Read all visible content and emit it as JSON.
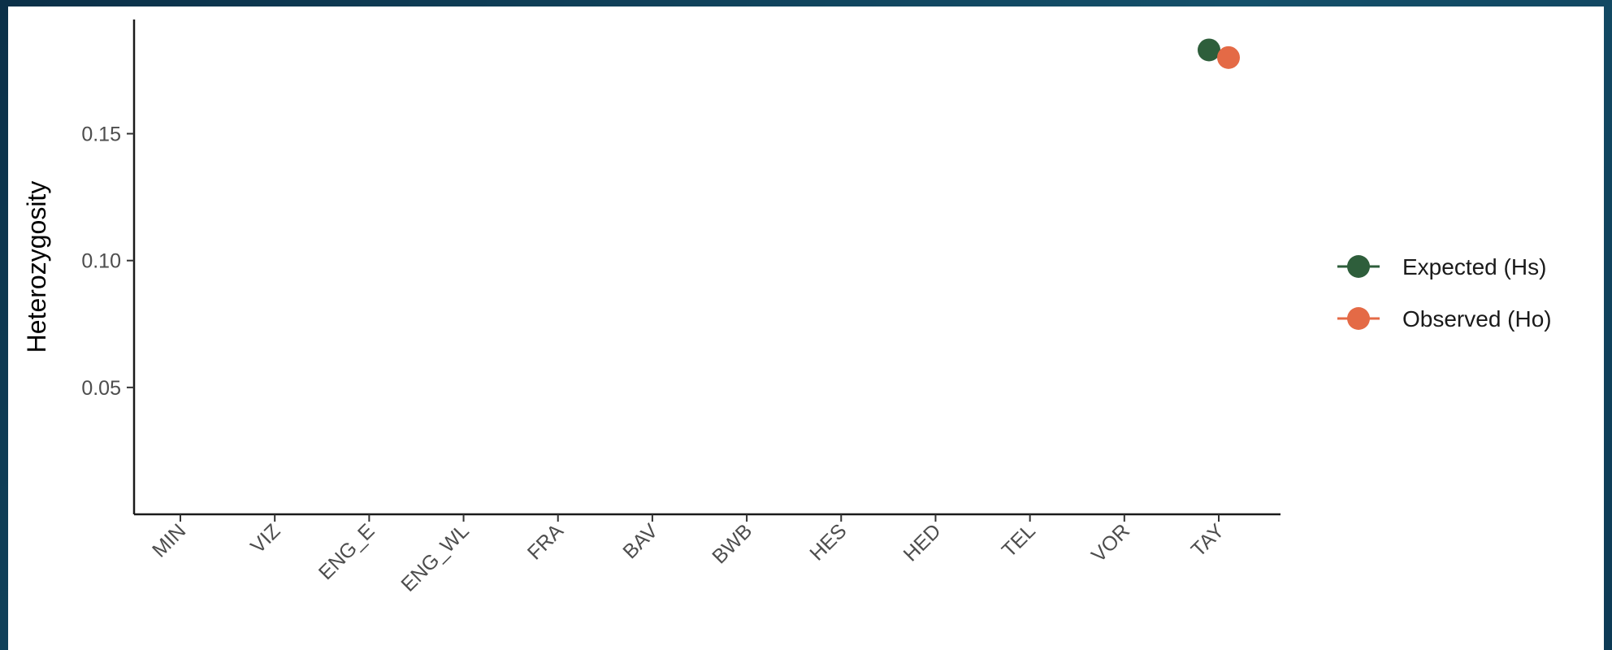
{
  "chart_data": {
    "type": "scatter",
    "title": "",
    "xlabel": "",
    "ylabel": "Heterozygosity",
    "categories": [
      "MIN",
      "VIZ",
      "ENG_E",
      "ENG_WL",
      "FRA",
      "BAV",
      "BWB",
      "HES",
      "HED",
      "TEL",
      "VOR",
      "TAY"
    ],
    "ylim": [
      0.0,
      0.195
    ],
    "yticks": [
      "0.05",
      "0.10",
      "0.15"
    ],
    "grid": false,
    "legend_position": "right",
    "series": [
      {
        "name": "Expected (Hs)",
        "color": "#2e5e3b",
        "values": [
          null,
          null,
          null,
          null,
          null,
          null,
          null,
          null,
          null,
          null,
          null,
          0.183
        ]
      },
      {
        "name": "Observed (Ho)",
        "color": "#e46a46",
        "values": [
          null,
          null,
          null,
          null,
          null,
          null,
          null,
          null,
          null,
          null,
          null,
          0.18
        ]
      }
    ]
  }
}
